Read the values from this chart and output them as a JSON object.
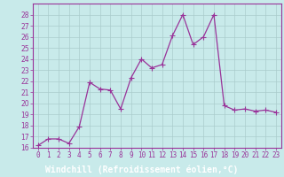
{
  "x": [
    0,
    1,
    2,
    3,
    4,
    5,
    6,
    7,
    8,
    9,
    10,
    11,
    12,
    13,
    14,
    15,
    16,
    17,
    18,
    19,
    20,
    21,
    22,
    23
  ],
  "y": [
    16.2,
    16.8,
    16.8,
    16.4,
    17.9,
    21.9,
    21.3,
    21.2,
    19.5,
    22.3,
    24.0,
    23.2,
    23.5,
    26.1,
    28.0,
    25.3,
    26.0,
    28.0,
    19.8,
    19.4,
    19.5,
    19.3,
    19.4,
    19.2
  ],
  "line_color": "#993399",
  "marker": "+",
  "marker_size": 4,
  "bg_color": "#c8eaea",
  "grid_color": "#aacccc",
  "xlabel": "Windchill (Refroidissement éolien,°C)",
  "xlabel_color": "#993399",
  "xlabel_fontsize": 7,
  "xlabel_bg": "#993399",
  "ylim": [
    16,
    29
  ],
  "xlim": [
    -0.5,
    23.5
  ],
  "yticks": [
    16,
    17,
    18,
    19,
    20,
    21,
    22,
    23,
    24,
    25,
    26,
    27,
    28
  ],
  "xticks": [
    0,
    1,
    2,
    3,
    4,
    5,
    6,
    7,
    8,
    9,
    10,
    11,
    12,
    13,
    14,
    15,
    16,
    17,
    18,
    19,
    20,
    21,
    22,
    23
  ],
  "tick_fontsize": 5.5,
  "spine_color": "#993399",
  "line_width": 0.9
}
